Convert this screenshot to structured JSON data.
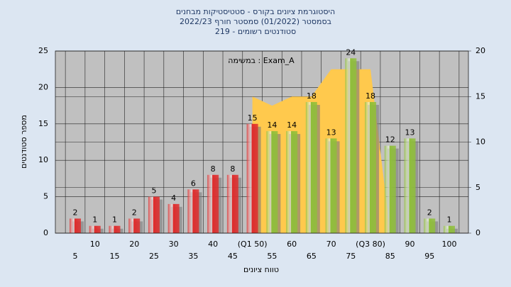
{
  "chart_data": {
    "type": "bar",
    "title": [
      "היסטוגרמת ציונים בקורס - סטטיסטיקות מבחנים",
      "בסמסטר (01/2022) סמסטר חורף 2022/23",
      "סטודנטים רשומים - 219"
    ],
    "annotation": "במשימה : Exam_A",
    "ylabel": "מספר סטודנטים",
    "xlabel": "טווח ציונים",
    "categories": [
      "5",
      "10",
      "15",
      "20",
      "25",
      "30",
      "35",
      "40",
      "45",
      "(Q1 50)",
      "55",
      "60",
      "65",
      "70",
      "75",
      "(Q3 80)",
      "85",
      "90",
      "95",
      "100"
    ],
    "values": [
      2,
      1,
      1,
      2,
      5,
      4,
      6,
      8,
      8,
      15,
      14,
      14,
      18,
      13,
      24,
      18,
      12,
      13,
      2,
      1
    ],
    "colors": [
      "#e02b2b",
      "#e02b2b",
      "#e02b2b",
      "#e02b2b",
      "#e02b2b",
      "#e02b2b",
      "#e02b2b",
      "#e02b2b",
      "#e02b2b",
      "#e02b2b",
      "#8fbf3a",
      "#8fbf3a",
      "#8fbf3a",
      "#8fbf3a",
      "#8fbf3a",
      "#8fbf3a",
      "#8fbf3a",
      "#8fbf3a",
      "#8fbf3a",
      "#8fbf3a"
    ],
    "area": {
      "axis": "y2",
      "color": "#ffc94d",
      "values": [
        null,
        null,
        null,
        null,
        null,
        null,
        null,
        null,
        null,
        15,
        14,
        15,
        15,
        18,
        18,
        18,
        0,
        null,
        null,
        null
      ]
    },
    "ylim": [
      0,
      25
    ],
    "yticks": [
      0,
      5,
      10,
      15,
      20,
      25
    ],
    "y2lim": [
      0,
      20
    ],
    "y2ticks": [
      0,
      5,
      10,
      15,
      20
    ],
    "grid": true
  }
}
